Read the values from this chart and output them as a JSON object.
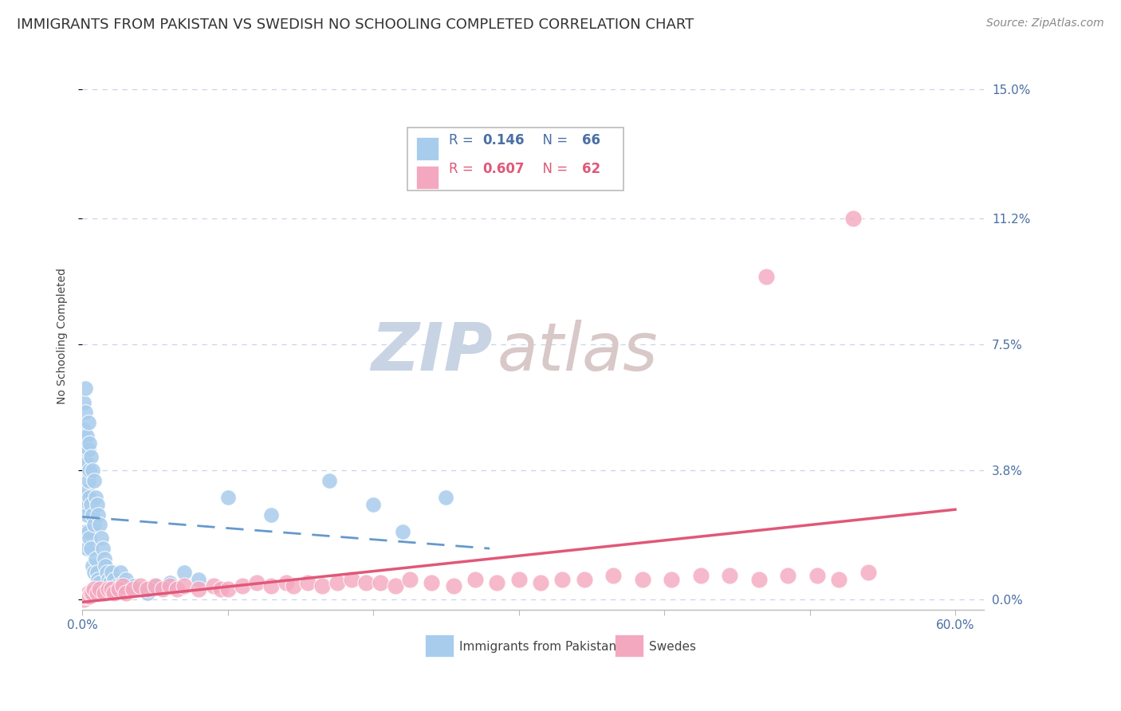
{
  "title": "IMMIGRANTS FROM PAKISTAN VS SWEDISH NO SCHOOLING COMPLETED CORRELATION CHART",
  "source": "Source: ZipAtlas.com",
  "ylabel": "No Schooling Completed",
  "xlim": [
    0.0,
    0.62
  ],
  "ylim": [
    -0.003,
    0.158
  ],
  "ytick_labels_right": [
    "15.0%",
    "11.2%",
    "7.5%",
    "3.8%",
    "0.0%"
  ],
  "ytick_values_right": [
    0.15,
    0.112,
    0.075,
    0.038,
    0.0
  ],
  "blue_color": "#A8CCEC",
  "pink_color": "#F4A8C0",
  "blue_line_color": "#6699CC",
  "pink_line_color": "#E05878",
  "watermark_zip": "ZIP",
  "watermark_atlas": "atlas",
  "watermark_color_zip": "#C8D4E4",
  "watermark_color_atlas": "#D8C8C8",
  "title_fontsize": 13,
  "source_fontsize": 10,
  "axis_label_fontsize": 10,
  "tick_fontsize": 11,
  "background_color": "#FFFFFF",
  "grid_color": "#C8D4E8",
  "legend_r1_text": "R = ",
  "legend_r1_val": "0.146",
  "legend_n1_text": "N = ",
  "legend_n1_val": "66",
  "legend_r2_text": "R = ",
  "legend_r2_val": "0.607",
  "legend_n2_text": "N = ",
  "legend_n2_val": "62"
}
